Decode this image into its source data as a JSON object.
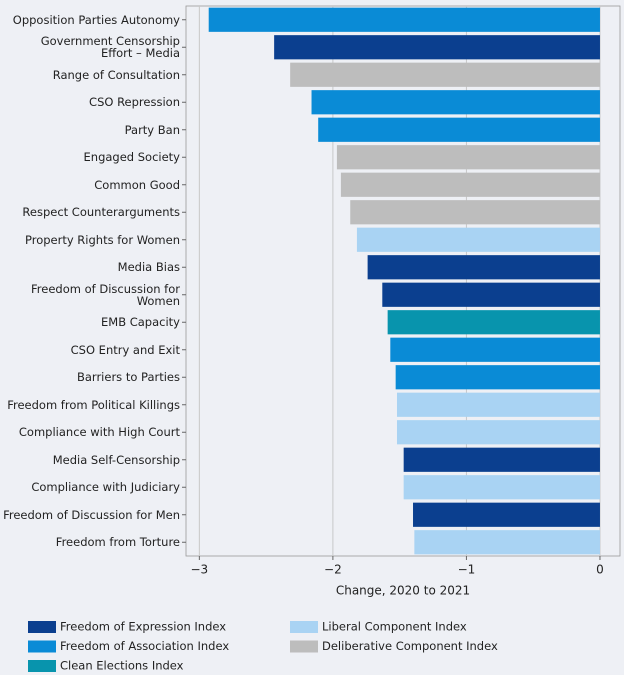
{
  "chart_data": {
    "type": "barh",
    "xlabel": "Change, 2020 to 2021",
    "categories": [
      "Opposition Parties Autonomy",
      "Government Censorship\nEffort – Media",
      "Range of Consultation",
      "CSO Repression",
      "Party Ban",
      "Engaged Society",
      "Common Good",
      "Respect Counterarguments",
      "Property Rights for Women",
      "Media Bias",
      "Freedom of Discussion for\nWomen",
      "EMB Capacity",
      "CSO Entry and Exit",
      "Barriers to Parties",
      "Freedom from Political Killings",
      "Compliance with High Court",
      "Media Self-Censorship",
      "Compliance with Judiciary",
      "Freedom of Discussion for Men",
      "Freedom from Torture"
    ],
    "series": [
      {
        "name": "Freedom of Expression Index",
        "color": "#0b3f8f",
        "values": [
          null,
          -2.44,
          null,
          null,
          null,
          null,
          null,
          null,
          null,
          -1.74,
          -1.63,
          null,
          null,
          null,
          null,
          null,
          -1.47,
          null,
          -1.4,
          null
        ]
      },
      {
        "name": "Freedom of Association Index",
        "color": "#0a8bd6",
        "values": [
          -2.93,
          null,
          null,
          -2.16,
          -2.11,
          null,
          null,
          null,
          null,
          null,
          null,
          null,
          -1.57,
          -1.53,
          null,
          null,
          null,
          null,
          null,
          null
        ]
      },
      {
        "name": "Clean Elections Index",
        "color": "#0894ad",
        "values": [
          null,
          null,
          null,
          null,
          null,
          null,
          null,
          null,
          null,
          null,
          null,
          -1.59,
          null,
          null,
          null,
          null,
          null,
          null,
          null,
          null
        ]
      },
      {
        "name": "Liberal Component Index",
        "color": "#a9d3f3",
        "values": [
          null,
          null,
          null,
          null,
          null,
          null,
          null,
          null,
          -1.82,
          null,
          null,
          null,
          null,
          null,
          -1.52,
          -1.52,
          null,
          -1.47,
          null,
          -1.39
        ]
      },
      {
        "name": "Deliberative Component Index",
        "color": "#bdbdbd",
        "values": [
          null,
          null,
          -2.32,
          null,
          null,
          -1.97,
          -1.94,
          -1.87,
          null,
          null,
          null,
          null,
          null,
          null,
          null,
          null,
          null,
          null,
          null,
          null
        ]
      }
    ],
    "xlim": [
      -3.1,
      0.15
    ],
    "xticks": [
      {
        "value": -3,
        "label": "−3"
      },
      {
        "value": -2,
        "label": "−2"
      },
      {
        "value": -1,
        "label": "−1"
      },
      0
    ],
    "grid": true
  }
}
